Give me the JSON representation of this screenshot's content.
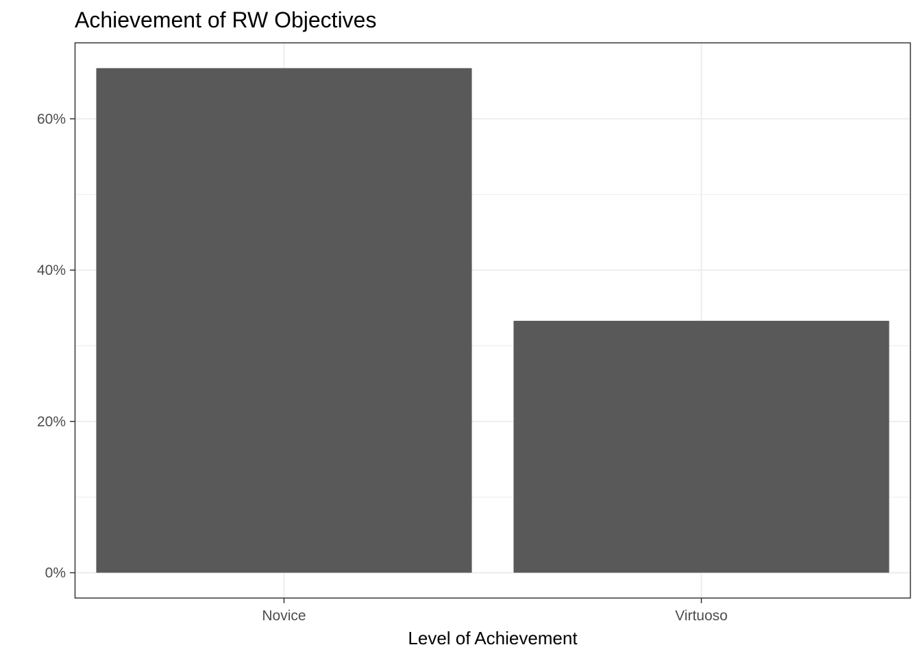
{
  "chart_data": {
    "type": "bar",
    "title": "Achievement of RW Objectives",
    "xlabel": "Level of Achievement",
    "ylabel": "",
    "categories": [
      "Novice",
      "Virtuoso"
    ],
    "values": [
      66.7,
      33.3
    ],
    "value_unit": "percent",
    "ylim": [
      -3.3,
      70
    ],
    "yticks": [
      0,
      20,
      40,
      60
    ],
    "ytick_labels": [
      "0%",
      "20%",
      "40%",
      "60%"
    ],
    "grid": true,
    "legend": "none",
    "bar_color": "#595959",
    "grid_color": "#ebebeb",
    "panel_border_color": "#333333"
  }
}
